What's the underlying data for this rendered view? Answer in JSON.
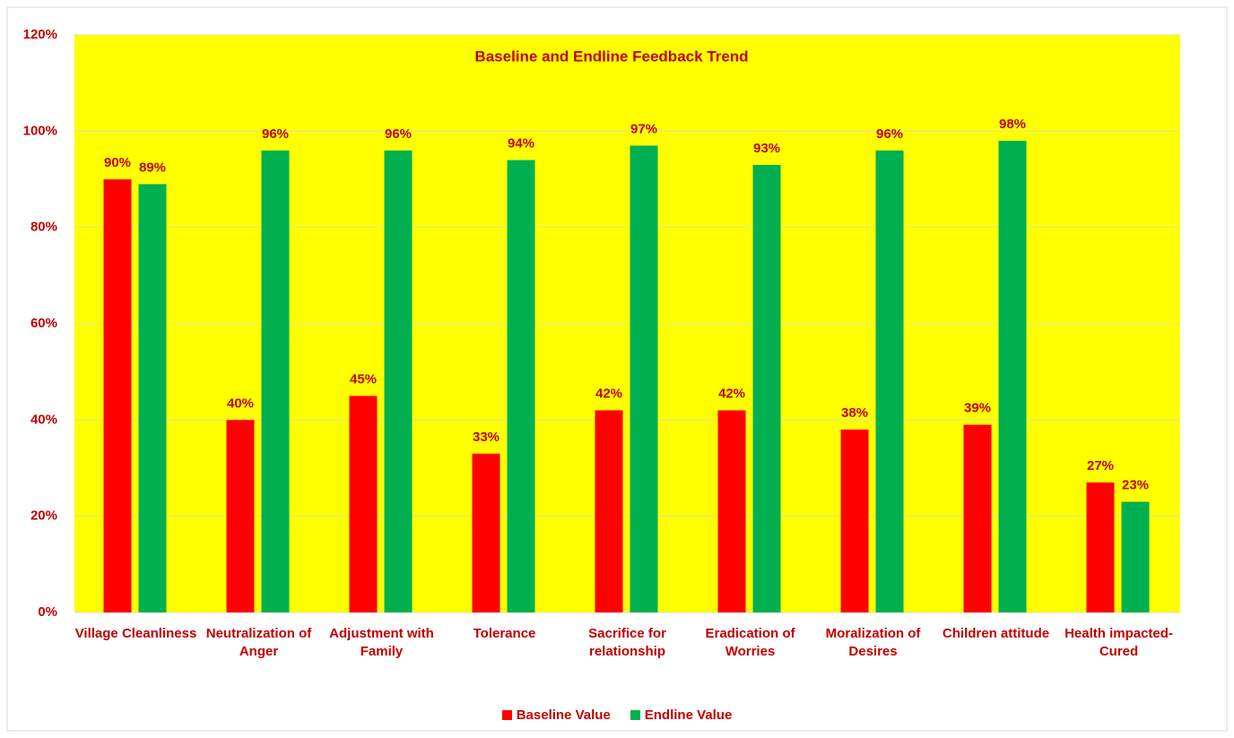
{
  "chart_data": {
    "type": "bar",
    "title": "Baseline and Endline Feedback Trend",
    "categories": [
      "Village Cleanliness",
      "Neutralization of Anger",
      "Adjustment with Family",
      "Tolerance",
      "Sacrifice for relationship",
      "Eradication of Worries",
      "Moralization of Desires",
      "Children attitude",
      "Health impacted-Cured"
    ],
    "series": [
      {
        "name": "Baseline Value",
        "color": "#ff0000",
        "values": [
          90,
          40,
          45,
          33,
          42,
          42,
          38,
          39,
          27
        ],
        "value_labels": [
          "90%",
          "40%",
          "45%",
          "33%",
          "42%",
          "42%",
          "38%",
          "39%",
          "27%"
        ]
      },
      {
        "name": "Endline Value",
        "color": "#00b050",
        "values": [
          89,
          96,
          96,
          94,
          97,
          93,
          96,
          98,
          23
        ],
        "value_labels": [
          "89%",
          "96%",
          "96%",
          "94%",
          "97%",
          "93%",
          "96%",
          "98%",
          "23%"
        ]
      }
    ],
    "ylim": [
      0,
      120
    ],
    "yticks": [
      {
        "value": 0,
        "label": "0%"
      },
      {
        "value": 20,
        "label": "20%"
      },
      {
        "value": 40,
        "label": "40%"
      },
      {
        "value": 60,
        "label": "60%"
      },
      {
        "value": 80,
        "label": "80%"
      },
      {
        "value": 100,
        "label": "100%"
      },
      {
        "value": 120,
        "label": "120%"
      }
    ],
    "grid": true,
    "legend": "bottom",
    "background": "#ffff00"
  }
}
